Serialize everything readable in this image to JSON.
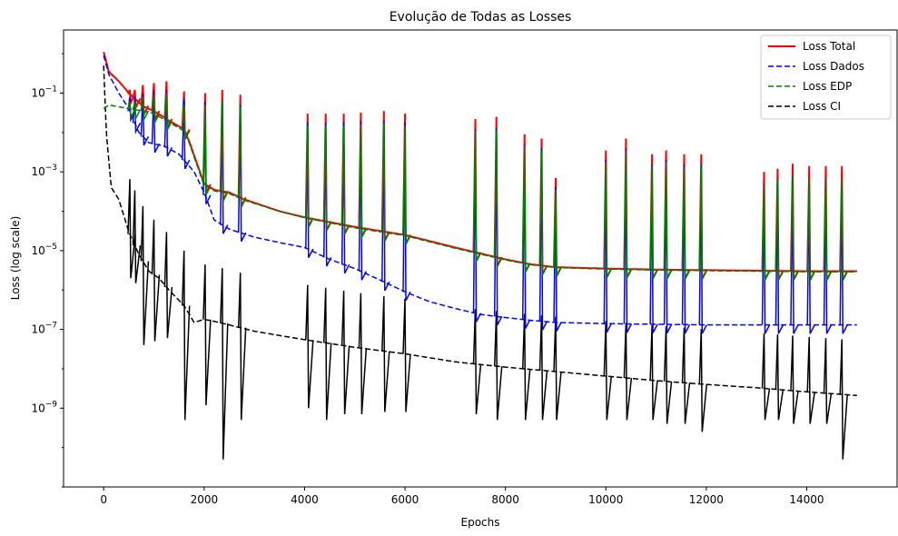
{
  "chart_data": {
    "type": "line",
    "title": "Evolução de Todas as Losses",
    "xlabel": "Epochs",
    "ylabel": "Loss (log scale)",
    "yscale": "log",
    "xlim": [
      -800,
      15800
    ],
    "ylim": [
      1e-11,
      4
    ],
    "x_ticks": [
      0,
      2000,
      4000,
      6000,
      8000,
      10000,
      12000,
      14000
    ],
    "y_ticks": [
      {
        "value": 0.1,
        "label": "10−1"
      },
      {
        "value": 0.001,
        "label": "10−3"
      },
      {
        "value": 1e-05,
        "label": "10−5"
      },
      {
        "value": 1e-07,
        "label": "10−7"
      },
      {
        "value": 1e-09,
        "label": "10−9"
      }
    ],
    "legend_position": "upper-right",
    "grid": false,
    "spike_epochs": [
      520,
      620,
      780,
      1000,
      1250,
      1600,
      2020,
      2360,
      2720,
      4060,
      4420,
      4780,
      5120,
      5580,
      6000,
      7400,
      7820,
      8380,
      8720,
      9000,
      10000,
      10400,
      10920,
      11200,
      11560,
      11900,
      13150,
      13420,
      13720,
      14050,
      14380,
      14700
    ],
    "series": [
      {
        "name": "Loss Total",
        "color": "#ff0000",
        "style": "solid",
        "x": [
          0,
          100,
          300,
          500,
          800,
          1000,
          1300,
          1600,
          1700,
          2000,
          2200,
          2500,
          2800,
          3500,
          4000,
          5000,
          6000,
          7000,
          8000,
          8500,
          9000,
          10000,
          11000,
          12000,
          13000,
          14000,
          15000
        ],
        "y": [
          1.1,
          0.35,
          0.2,
          0.1,
          0.045,
          0.035,
          0.02,
          0.012,
          0.006,
          0.0005,
          0.00035,
          0.0003,
          0.0002,
          0.0001,
          7e-05,
          4e-05,
          2.5e-05,
          1.2e-05,
          6e-06,
          4.5e-06,
          3.8e-06,
          3.5e-06,
          3.3e-06,
          3.2e-06,
          3.1e-06,
          3e-06,
          3e-06
        ],
        "spike_peaks": [
          0.12,
          0.12,
          0.16,
          0.18,
          0.2,
          0.11,
          0.1,
          0.12,
          0.09,
          0.03,
          0.03,
          0.03,
          0.032,
          0.035,
          0.03,
          0.022,
          0.025,
          0.009,
          0.007,
          0.0007,
          0.0035,
          0.007,
          0.0028,
          0.0035,
          0.0028,
          0.0028,
          0.001,
          0.0012,
          0.0016,
          0.0014,
          0.0014,
          0.0014
        ]
      },
      {
        "name": "Loss Dados",
        "color": "#0000ff",
        "style": "dashed",
        "x": [
          0,
          100,
          300,
          500,
          700,
          900,
          1200,
          1500,
          1800,
          2000,
          2200,
          2500,
          3000,
          3500,
          4000,
          4500,
          5000,
          5500,
          6000,
          6500,
          7000,
          7500,
          8000,
          8500,
          9000,
          10000,
          12000,
          14000,
          15000
        ],
        "y": [
          0.9,
          0.3,
          0.1,
          0.04,
          0.01,
          0.0055,
          0.0045,
          0.0028,
          0.001,
          0.0003,
          6e-05,
          3.5e-05,
          2.2e-05,
          1.6e-05,
          1.2e-05,
          6e-06,
          3.5e-06,
          1.8e-06,
          9e-07,
          5e-07,
          3.4e-07,
          2.4e-07,
          2e-07,
          1.7e-07,
          1.5e-07,
          1.4e-07,
          1.3e-07,
          1.3e-07,
          1.3e-07
        ],
        "spike_peaks": [
          0.08,
          0.08,
          0.1,
          0.12,
          0.12,
          0.07,
          0.06,
          0.06,
          0.05,
          0.018,
          0.017,
          0.018,
          0.02,
          0.02,
          0.018,
          0.012,
          0.013,
          0.005,
          0.004,
          0.0004,
          0.002,
          0.004,
          0.0015,
          0.002,
          0.0015,
          0.0015,
          0.0005,
          0.0006,
          0.0008,
          0.0007,
          0.0007,
          0.0007
        ]
      },
      {
        "name": "Loss EDP",
        "color": "#008000",
        "style": "dashed",
        "x": [
          0,
          100,
          300,
          500,
          800,
          1000,
          1300,
          1600,
          1700,
          2000,
          2200,
          2500,
          2800,
          3500,
          4000,
          5000,
          6000,
          7000,
          8000,
          8500,
          9000,
          10000,
          11000,
          12000,
          13000,
          14000,
          15000
        ],
        "y": [
          0.04,
          0.05,
          0.045,
          0.04,
          0.035,
          0.03,
          0.018,
          0.011,
          0.0055,
          0.00045,
          0.00033,
          0.00028,
          0.00019,
          0.0001,
          6.8e-05,
          3.8e-05,
          2.4e-05,
          1.15e-05,
          5.8e-06,
          4.4e-06,
          3.7e-06,
          3.4e-06,
          3.2e-06,
          3.1e-06,
          3e-06,
          2.9e-06,
          2.9e-06
        ],
        "spike_peaks": [
          0.06,
          0.06,
          0.08,
          0.09,
          0.1,
          0.05,
          0.05,
          0.06,
          0.045,
          0.015,
          0.015,
          0.015,
          0.016,
          0.017,
          0.015,
          0.011,
          0.012,
          0.0045,
          0.0035,
          0.00035,
          0.0018,
          0.0035,
          0.0014,
          0.0018,
          0.0014,
          0.0014,
          0.0005,
          0.0006,
          0.0008,
          0.0007,
          0.0007,
          0.0007
        ]
      },
      {
        "name": "Loss CI",
        "color": "#000000",
        "style": "dashed",
        "x": [
          0,
          50,
          150,
          300,
          500,
          700,
          900,
          1100,
          1300,
          1600,
          1800,
          2000,
          2200,
          2500,
          3000,
          3500,
          4000,
          5000,
          6000,
          7000,
          8000,
          9000,
          10000,
          11000,
          12000,
          13000,
          14000,
          15000
        ],
        "y": [
          0.5,
          0.01,
          0.0004,
          0.0002,
          3e-05,
          8e-06,
          3e-06,
          2e-06,
          1e-06,
          4e-07,
          1.5e-07,
          1.8e-07,
          1.6e-07,
          1.3e-07,
          9e-08,
          7e-08,
          5.5e-08,
          3.5e-08,
          2.4e-08,
          1.5e-08,
          1.1e-08,
          8.5e-09,
          6.5e-09,
          5e-09,
          4e-09,
          3.3e-09,
          2.6e-09,
          2.1e-09
        ],
        "dip_lows": [
          2e-06,
          1.5e-06,
          4e-08,
          5e-08,
          6e-08,
          5e-10,
          1.2e-09,
          5e-11,
          5e-10,
          1e-09,
          5e-10,
          7e-10,
          7e-10,
          8e-10,
          8e-10,
          7e-10,
          5e-10,
          5e-10,
          5e-10,
          5e-10,
          5e-10,
          5e-10,
          5e-10,
          4e-10,
          4e-10,
          2.5e-10,
          5e-10,
          5e-10,
          4e-10,
          4e-10,
          4e-10,
          5e-11
        ]
      }
    ]
  }
}
